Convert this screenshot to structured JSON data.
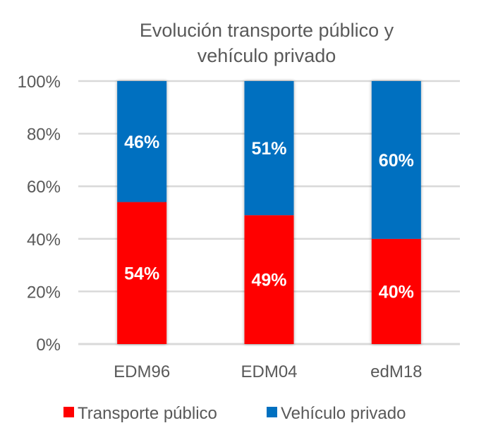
{
  "chart_data": {
    "type": "bar",
    "stacked": true,
    "title": "Evolución transporte público y vehículo privado",
    "title_lines": [
      "Evolución transporte público y",
      "vehículo privado"
    ],
    "xlabel": "",
    "ylabel": "",
    "ylim": [
      0,
      100
    ],
    "yticks": [
      "0%",
      "20%",
      "40%",
      "60%",
      "80%",
      "100%"
    ],
    "grid": true,
    "legend_position": "bottom",
    "categories": [
      "EDM96",
      "EDM04",
      "edM18"
    ],
    "series": [
      {
        "name": "Transporte público",
        "color": "#FF0000",
        "values": [
          54,
          49,
          40
        ],
        "labels": [
          "54%",
          "49%",
          "40%"
        ]
      },
      {
        "name": "Vehículo privado",
        "color": "#0070C0",
        "values": [
          46,
          51,
          60
        ],
        "labels": [
          "46%",
          "51%",
          "60%"
        ]
      }
    ]
  }
}
